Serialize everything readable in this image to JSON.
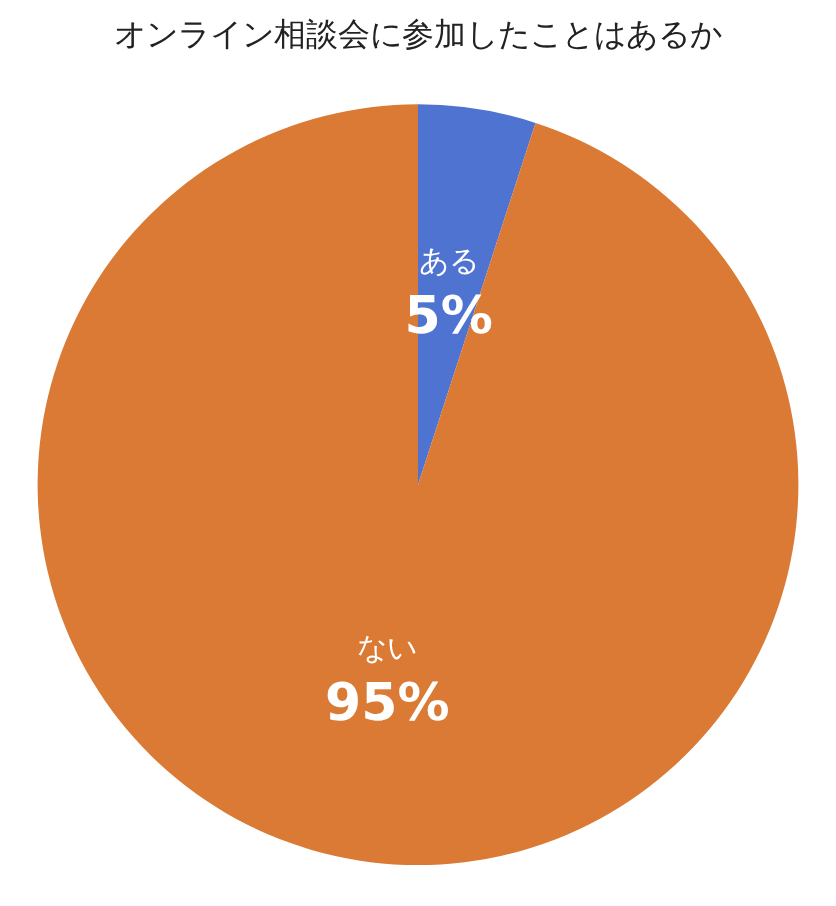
{
  "chart_data": {
    "type": "pie",
    "title": "オンライン相談会に参加したことはあるか",
    "categories": [
      "ある",
      "ない"
    ],
    "values": [
      5,
      95
    ],
    "value_labels": [
      "5%",
      "95%"
    ],
    "colors": [
      "#4e73d1",
      "#da7a34"
    ],
    "legend": false
  }
}
